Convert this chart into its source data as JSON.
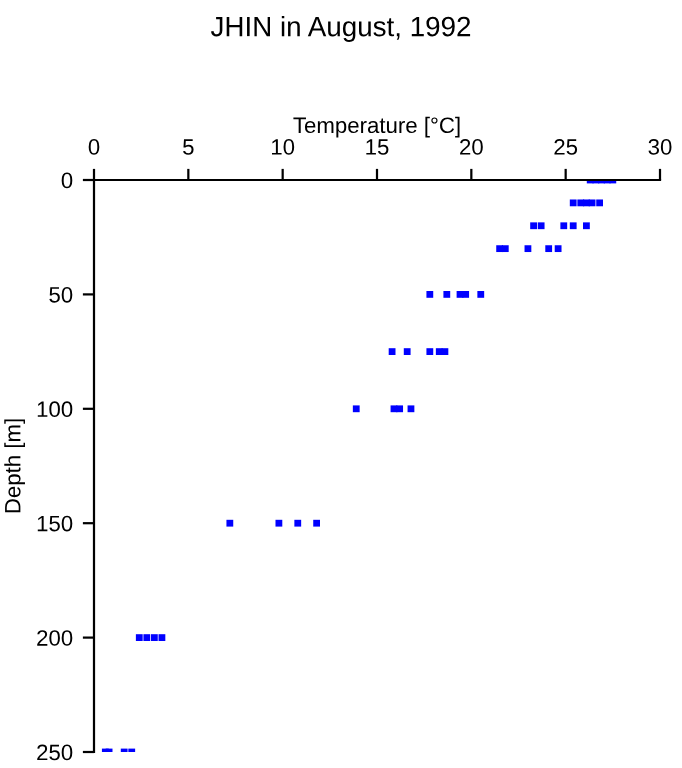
{
  "chart_data": {
    "type": "scatter",
    "title": "JHIN in August, 1992",
    "xlabel": "Temperature [°C]",
    "ylabel": "Depth [m]",
    "xlim": [
      0,
      30
    ],
    "xticks": [
      0,
      5,
      10,
      15,
      20,
      25,
      30
    ],
    "ylim": [
      250,
      0
    ],
    "yticks": [
      0,
      50,
      100,
      150,
      200,
      250
    ],
    "marker": "square",
    "series": [
      {
        "color": "#0000ff",
        "x": [
          26.3,
          26.6,
          26.9,
          27.2,
          27.5,
          25.4,
          25.8,
          26.1,
          26.4,
          26.8,
          23.3,
          23.7,
          24.9,
          25.4,
          26.1,
          21.5,
          21.8,
          23.0,
          24.1,
          24.6,
          17.8,
          18.7,
          19.4,
          19.7,
          20.5,
          15.8,
          16.6,
          17.8,
          18.3,
          18.6,
          13.9,
          15.9,
          16.2,
          16.8,
          7.2,
          9.8,
          10.8,
          11.8,
          2.4,
          2.8,
          3.2,
          3.6,
          0.6,
          0.8,
          1.6,
          2.0
        ],
        "values": [
          0,
          0,
          0,
          0,
          0,
          10,
          10,
          10,
          10,
          10,
          20,
          20,
          20,
          20,
          20,
          30,
          30,
          30,
          30,
          30,
          50,
          50,
          50,
          50,
          50,
          75,
          75,
          75,
          75,
          75,
          100,
          100,
          100,
          100,
          150,
          150,
          150,
          150,
          200,
          200,
          200,
          200,
          250,
          250,
          250,
          250
        ]
      }
    ]
  }
}
